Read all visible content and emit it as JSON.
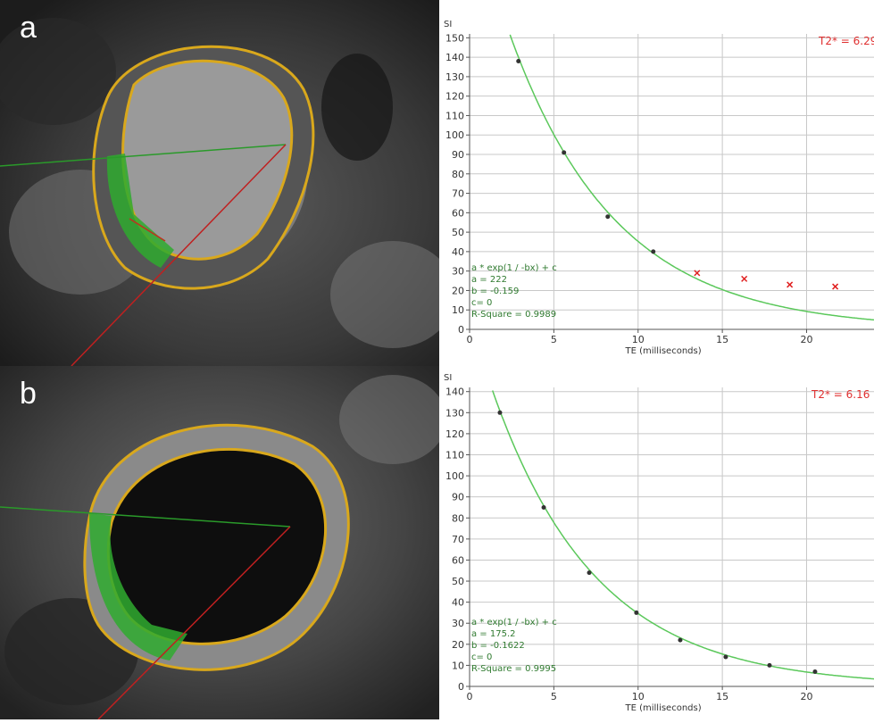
{
  "panels": [
    {
      "letter": "a"
    },
    {
      "letter": "b"
    }
  ],
  "chart_data": [
    {
      "type": "scatter",
      "panel": "a",
      "ylabel": "SI",
      "xlabel": "TE (milliseconds)",
      "xlim": [
        0,
        24
      ],
      "ylim": [
        0,
        152
      ],
      "x_ticks": [
        0,
        5,
        10,
        15,
        20
      ],
      "y_ticks": [
        0,
        10,
        20,
        30,
        40,
        50,
        60,
        70,
        80,
        90,
        100,
        110,
        120,
        130,
        140,
        150
      ],
      "grid": true,
      "result_label": "T2* = 6.29",
      "fit": {
        "formula": "a * exp(1 / -bx) + c",
        "a_label": "a = 222",
        "b_label": "b = -0.159",
        "c_label": "c= 0",
        "r2_label": "R-Square = 0.9989",
        "a": 222,
        "b": -0.159,
        "c": 0
      },
      "series": [
        {
          "marker": "dot",
          "color": "#333333",
          "x": [
            2.9,
            5.6,
            8.2,
            10.9
          ],
          "y": [
            138,
            91,
            58,
            40
          ]
        },
        {
          "marker": "x",
          "color": "#e02020",
          "x": [
            13.5,
            16.3,
            19.0,
            21.7
          ],
          "y": [
            29,
            26,
            23,
            22
          ]
        }
      ]
    },
    {
      "type": "scatter",
      "panel": "b",
      "ylabel": "SI",
      "xlabel": "TE (milliseconds)",
      "xlim": [
        0,
        24
      ],
      "ylim": [
        0,
        142
      ],
      "x_ticks": [
        0,
        5,
        10,
        15,
        20
      ],
      "y_ticks": [
        0,
        10,
        20,
        30,
        40,
        50,
        60,
        70,
        80,
        90,
        100,
        110,
        120,
        130,
        140
      ],
      "grid": true,
      "result_label": "T2* = 6.16",
      "fit": {
        "formula": "a * exp(1 / -bx) + c",
        "a_label": "a = 175.2",
        "b_label": "b = -0.1622",
        "c_label": "c= 0",
        "r2_label": "R-Square = 0.9995",
        "a": 175.2,
        "b": -0.1622,
        "c": 0
      },
      "series": [
        {
          "marker": "dot",
          "color": "#333333",
          "x": [
            1.8,
            4.4,
            7.1,
            9.9,
            12.5,
            15.2,
            17.8,
            20.5
          ],
          "y": [
            130,
            85,
            54,
            35,
            22,
            14,
            10,
            7
          ]
        }
      ]
    }
  ]
}
